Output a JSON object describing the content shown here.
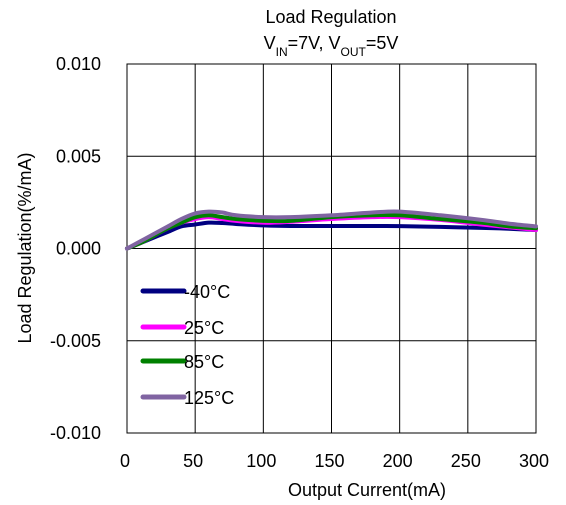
{
  "chart_data": {
    "type": "line",
    "title": "Load Regulation",
    "subtitle": {
      "parts": [
        {
          "text": "V",
          "sub": false
        },
        {
          "text": "IN",
          "sub": true
        },
        {
          "text": "=7V, V",
          "sub": false
        },
        {
          "text": "OUT",
          "sub": true
        },
        {
          "text": "=5V",
          "sub": false
        }
      ]
    },
    "xlabel": "Output Current(mA)",
    "ylabel": "Load Regulation(%/mA)",
    "xlim": [
      0,
      300
    ],
    "ylim": [
      -0.01,
      0.01
    ],
    "x_ticks": [
      0,
      50,
      100,
      150,
      200,
      250,
      300
    ],
    "x_tick_labels": [
      "0",
      "50",
      "100",
      "150",
      "200",
      "250",
      "300"
    ],
    "y_ticks": [
      0.01,
      0.005,
      0.0,
      -0.005,
      -0.01
    ],
    "y_tick_labels": [
      "0.010",
      "0.005",
      "0.000",
      "-0.005",
      "-0.010"
    ],
    "grid": true,
    "legend_position": "bottom-left",
    "series": [
      {
        "name": "-40°C",
        "color": "#000080",
        "x": [
          0,
          10,
          20,
          30,
          40,
          50,
          60,
          70,
          80,
          100,
          120,
          150,
          180,
          200,
          230,
          260,
          280,
          300
        ],
        "y": [
          0.0,
          0.0003,
          0.0006,
          0.0009,
          0.0012,
          0.0013,
          0.0014,
          0.00138,
          0.00133,
          0.00125,
          0.00122,
          0.00122,
          0.00122,
          0.00121,
          0.00117,
          0.00112,
          0.00107,
          0.001
        ]
      },
      {
        "name": "25°C",
        "color": "#ff00ff",
        "x": [
          0,
          10,
          20,
          30,
          40,
          50,
          60,
          70,
          80,
          100,
          120,
          150,
          180,
          200,
          230,
          260,
          280,
          300
        ],
        "y": [
          0.0,
          0.0003,
          0.0007,
          0.0011,
          0.0014,
          0.0016,
          0.0017,
          0.0016,
          0.0015,
          0.0014,
          0.00145,
          0.0016,
          0.0017,
          0.0017,
          0.00155,
          0.0013,
          0.00115,
          0.001
        ]
      },
      {
        "name": "85°C",
        "color": "#008000",
        "x": [
          0,
          10,
          20,
          30,
          40,
          50,
          60,
          70,
          80,
          100,
          120,
          150,
          180,
          200,
          230,
          260,
          280,
          300
        ],
        "y": [
          0.0,
          0.0003,
          0.0007,
          0.0011,
          0.0014,
          0.0017,
          0.0018,
          0.0017,
          0.0016,
          0.0015,
          0.0015,
          0.0017,
          0.0018,
          0.0018,
          0.0016,
          0.0014,
          0.0012,
          0.0011
        ]
      },
      {
        "name": "125°C",
        "color": "#8064a2",
        "x": [
          0,
          10,
          20,
          30,
          40,
          50,
          60,
          70,
          80,
          100,
          120,
          150,
          180,
          200,
          230,
          260,
          280,
          300
        ],
        "y": [
          0.0,
          0.0004,
          0.0008,
          0.0012,
          0.0016,
          0.0019,
          0.002,
          0.00195,
          0.0018,
          0.0017,
          0.0017,
          0.0018,
          0.00195,
          0.002,
          0.0018,
          0.00155,
          0.00135,
          0.0012
        ]
      }
    ]
  }
}
